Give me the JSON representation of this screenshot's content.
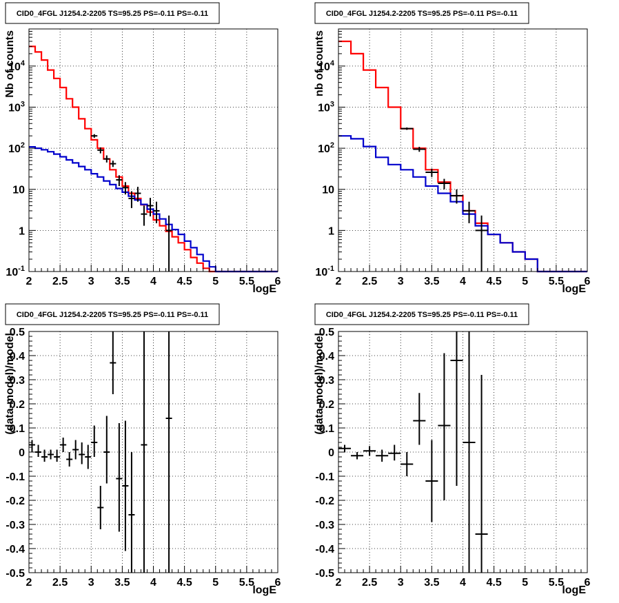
{
  "colors": {
    "data": "#000000",
    "total_model": "#ff0000",
    "source_model": "#0000cc",
    "grid": "#000000"
  },
  "chart_data": [
    {
      "type": "line",
      "title": "CID0_4FGL J1254.2-2205 TS=95.25 PS=-0.11 PS=-0.11",
      "xlabel": "logE",
      "ylabel": "Nb of counts",
      "xlim": [
        2,
        6
      ],
      "ylim": [
        0.1,
        80000
      ],
      "yscale": "log",
      "grid": true,
      "x_ticks": [
        "2",
        "2.5",
        "3",
        "3.5",
        "4",
        "4.5",
        "5",
        "5.5",
        "6"
      ],
      "y_ticks": [
        "10^-1",
        "1",
        "10",
        "10^2",
        "10^3",
        "10^4"
      ],
      "bin_edges": [
        2.0,
        2.1,
        2.2,
        2.3,
        2.4,
        2.5,
        2.6,
        2.7,
        2.8,
        2.9,
        3.0,
        3.1,
        3.2,
        3.3,
        3.4,
        3.5,
        3.6,
        3.7,
        3.8,
        3.9,
        4.0,
        4.1,
        4.2,
        4.3,
        4.4,
        4.5,
        4.6,
        4.7,
        4.8,
        4.9,
        5.0,
        5.1,
        5.2,
        5.3,
        5.4,
        5.5,
        5.6,
        5.7,
        5.8,
        5.9,
        6.0
      ],
      "series": [
        {
          "key": "total_model",
          "values": [
            30000,
            22000,
            14000,
            8000,
            5000,
            3000,
            1600,
            1000,
            520,
            300,
            160,
            100,
            55,
            30,
            20,
            12,
            8,
            6,
            4.2,
            2.8,
            1.8,
            1.3,
            0.95,
            0.7,
            0.5,
            0.34,
            0.22,
            0.16,
            0.12,
            0.1,
            0.1,
            0.1,
            0.1,
            0.1,
            0.1,
            0.1,
            0.1,
            0.1,
            0.1,
            0.1
          ]
        },
        {
          "key": "source_model",
          "values": [
            108,
            100,
            92,
            82,
            72,
            62,
            52,
            44,
            36,
            30,
            24,
            20,
            16,
            13,
            10.5,
            8.5,
            6.8,
            5.5,
            4.3,
            3.3,
            2.5,
            1.9,
            1.4,
            1.05,
            0.8,
            0.55,
            0.38,
            0.26,
            0.18,
            0.13,
            0.1,
            0.1,
            0.1,
            0.1,
            0.1,
            0.1,
            0.1,
            0.1,
            0.1,
            0.1
          ]
        }
      ],
      "points": [
        {
          "x": 3.05,
          "y": 200,
          "lo": 180,
          "hi": 220,
          "xe": 0.05
        },
        {
          "x": 3.15,
          "y": 90,
          "lo": 75,
          "hi": 105,
          "xe": 0.05
        },
        {
          "x": 3.25,
          "y": 55,
          "lo": 45,
          "hi": 67,
          "xe": 0.05
        },
        {
          "x": 3.35,
          "y": 42,
          "lo": 35,
          "hi": 50,
          "xe": 0.05
        },
        {
          "x": 3.45,
          "y": 17,
          "lo": 12,
          "hi": 22,
          "xe": 0.05
        },
        {
          "x": 3.55,
          "y": 11,
          "lo": 7.5,
          "hi": 15,
          "xe": 0.05
        },
        {
          "x": 3.65,
          "y": 6,
          "lo": 3.5,
          "hi": 9,
          "xe": 0.05
        },
        {
          "x": 3.75,
          "y": 8,
          "lo": 5,
          "hi": 11.5,
          "xe": 0.05
        },
        {
          "x": 3.85,
          "y": 2.5,
          "lo": 1.3,
          "hi": 4,
          "xe": 0.05
        },
        {
          "x": 3.95,
          "y": 4,
          "lo": 2.2,
          "hi": 6.2,
          "xe": 0.05
        },
        {
          "x": 4.05,
          "y": 3,
          "lo": 1.5,
          "hi": 5,
          "xe": 0.05
        },
        {
          "x": 4.25,
          "y": 1,
          "lo": 0.1,
          "hi": 2.3,
          "xe": 0.05
        }
      ]
    },
    {
      "type": "line",
      "title": "CID0_4FGL J1254.2-2205 TS=95.25 PS=-0.11 PS=-0.11",
      "xlabel": "logE",
      "ylabel": "nb of counts",
      "xlim": [
        2,
        6
      ],
      "ylim": [
        0.1,
        80000
      ],
      "yscale": "log",
      "grid": true,
      "x_ticks": [
        "2",
        "2.5",
        "3",
        "3.5",
        "4",
        "4.5",
        "5",
        "5.5",
        "6"
      ],
      "y_ticks": [
        "10^-1",
        "1",
        "10",
        "10^2",
        "10^3",
        "10^4"
      ],
      "bin_edges": [
        2.0,
        2.2,
        2.4,
        2.6,
        2.8,
        3.0,
        3.2,
        3.4,
        3.6,
        3.8,
        4.0,
        4.2,
        4.4,
        4.6,
        4.8,
        5.0,
        5.2,
        5.4,
        5.6,
        5.8,
        6.0
      ],
      "series": [
        {
          "key": "total_model",
          "values": [
            40000,
            20000,
            8000,
            3000,
            1000,
            300,
            100,
            30,
            15,
            7,
            3,
            1.5,
            0.8,
            0.5,
            0.3,
            0.2,
            0.1,
            0.1,
            0.1,
            0.1
          ]
        },
        {
          "key": "source_model",
          "values": [
            200,
            170,
            110,
            60,
            40,
            30,
            20,
            12,
            8,
            5,
            2.5,
            1.3,
            0.8,
            0.5,
            0.3,
            0.2,
            0.1,
            0.1,
            0.1,
            0.1
          ]
        }
      ],
      "points": [
        {
          "x": 3.1,
          "y": 300,
          "lo": 280,
          "hi": 320,
          "xe": 0.1
        },
        {
          "x": 3.3,
          "y": 95,
          "lo": 82,
          "hi": 108,
          "xe": 0.1
        },
        {
          "x": 3.5,
          "y": 26,
          "lo": 20,
          "hi": 32,
          "xe": 0.1
        },
        {
          "x": 3.7,
          "y": 14,
          "lo": 10,
          "hi": 18,
          "xe": 0.1
        },
        {
          "x": 3.9,
          "y": 7,
          "lo": 4.5,
          "hi": 10,
          "xe": 0.1
        },
        {
          "x": 4.1,
          "y": 3,
          "lo": 1.5,
          "hi": 5,
          "xe": 0.1
        },
        {
          "x": 4.3,
          "y": 1,
          "lo": 0.1,
          "hi": 2.3,
          "xe": 0.1
        }
      ]
    },
    {
      "type": "scatter",
      "title": "CID0_4FGL J1254.2-2205 TS=95.25 PS=-0.11 PS=-0.11",
      "xlabel": "logE",
      "ylabel": "(data-model)/model",
      "xlim": [
        2,
        6
      ],
      "ylim": [
        -0.5,
        0.5
      ],
      "grid": true,
      "x_ticks": [
        "2",
        "2.5",
        "3",
        "3.5",
        "4",
        "4.5",
        "5",
        "5.5",
        "6"
      ],
      "y_ticks": [
        "-0.5",
        "-0.4",
        "-0.3",
        "-0.2",
        "-0.1",
        "0",
        "0.1",
        "0.2",
        "0.3",
        "0.4",
        "0.5"
      ],
      "points": [
        {
          "x": 2.05,
          "y": 0.03,
          "lo": 0.0,
          "hi": 0.05,
          "xe": 0.05
        },
        {
          "x": 2.15,
          "y": 0.0,
          "lo": -0.02,
          "hi": 0.03,
          "xe": 0.05
        },
        {
          "x": 2.25,
          "y": -0.02,
          "lo": -0.04,
          "hi": 0.01,
          "xe": 0.05
        },
        {
          "x": 2.35,
          "y": -0.01,
          "lo": -0.03,
          "hi": 0.01,
          "xe": 0.05
        },
        {
          "x": 2.45,
          "y": -0.02,
          "lo": -0.04,
          "hi": 0.01,
          "xe": 0.05
        },
        {
          "x": 2.55,
          "y": 0.03,
          "lo": 0.0,
          "hi": 0.06,
          "xe": 0.05
        },
        {
          "x": 2.65,
          "y": -0.03,
          "lo": -0.06,
          "hi": 0.0,
          "xe": 0.05
        },
        {
          "x": 2.75,
          "y": 0.01,
          "lo": -0.03,
          "hi": 0.05,
          "xe": 0.05
        },
        {
          "x": 2.85,
          "y": -0.01,
          "lo": -0.05,
          "hi": 0.04,
          "xe": 0.05
        },
        {
          "x": 2.95,
          "y": -0.02,
          "lo": -0.07,
          "hi": 0.03,
          "xe": 0.05
        },
        {
          "x": 3.05,
          "y": 0.04,
          "lo": -0.02,
          "hi": 0.11,
          "xe": 0.05
        },
        {
          "x": 3.15,
          "y": -0.23,
          "lo": -0.32,
          "hi": -0.14,
          "xe": 0.05
        },
        {
          "x": 3.25,
          "y": 0.0,
          "lo": -0.13,
          "hi": 0.15,
          "xe": 0.05
        },
        {
          "x": 3.35,
          "y": 0.37,
          "lo": 0.24,
          "hi": 0.5,
          "xe": 0.05
        },
        {
          "x": 3.45,
          "y": -0.11,
          "lo": -0.33,
          "hi": 0.12,
          "xe": 0.05
        },
        {
          "x": 3.55,
          "y": -0.14,
          "lo": -0.41,
          "hi": 0.13,
          "xe": 0.05
        },
        {
          "x": 3.65,
          "y": -0.26,
          "lo": -0.5,
          "hi": 0.0,
          "xe": 0.05
        },
        {
          "x": 3.85,
          "y": 0.03,
          "lo": -0.5,
          "hi": 0.5,
          "xe": 0.05
        },
        {
          "x": 4.25,
          "y": 0.14,
          "lo": -0.5,
          "hi": 0.5,
          "xe": 0.05
        }
      ]
    },
    {
      "type": "scatter",
      "title": "CID0_4FGL J1254.2-2205 TS=95.25 PS=-0.11 PS=-0.11",
      "xlabel": "logE",
      "ylabel": "(data-model)/model",
      "xlim": [
        2,
        6
      ],
      "ylim": [
        -0.5,
        0.5
      ],
      "grid": true,
      "x_ticks": [
        "2",
        "2.5",
        "3",
        "3.5",
        "4",
        "4.5",
        "5",
        "5.5",
        "6"
      ],
      "y_ticks": [
        "-0.5",
        "-0.4",
        "-0.3",
        "-0.2",
        "-0.1",
        "0",
        "0.1",
        "0.2",
        "0.3",
        "0.4",
        "0.5"
      ],
      "points": [
        {
          "x": 2.1,
          "y": 0.015,
          "lo": 0.0,
          "hi": 0.03,
          "xe": 0.1
        },
        {
          "x": 2.3,
          "y": -0.015,
          "lo": -0.03,
          "hi": 0.0,
          "xe": 0.1
        },
        {
          "x": 2.5,
          "y": 0.005,
          "lo": -0.015,
          "hi": 0.025,
          "xe": 0.1
        },
        {
          "x": 2.7,
          "y": -0.015,
          "lo": -0.04,
          "hi": 0.01,
          "xe": 0.1
        },
        {
          "x": 2.9,
          "y": -0.005,
          "lo": -0.035,
          "hi": 0.03,
          "xe": 0.1
        },
        {
          "x": 3.1,
          "y": -0.05,
          "lo": -0.1,
          "hi": 0.0,
          "xe": 0.1
        },
        {
          "x": 3.3,
          "y": 0.13,
          "lo": 0.03,
          "hi": 0.245,
          "xe": 0.1
        },
        {
          "x": 3.5,
          "y": -0.12,
          "lo": -0.29,
          "hi": 0.05,
          "xe": 0.1
        },
        {
          "x": 3.7,
          "y": 0.11,
          "lo": -0.2,
          "hi": 0.41,
          "xe": 0.1
        },
        {
          "x": 3.9,
          "y": 0.38,
          "lo": -0.14,
          "hi": 0.5,
          "xe": 0.1
        },
        {
          "x": 4.1,
          "y": 0.04,
          "lo": -0.5,
          "hi": 0.5,
          "xe": 0.1
        },
        {
          "x": 4.3,
          "y": -0.34,
          "lo": -0.5,
          "hi": 0.32,
          "xe": 0.1
        }
      ]
    }
  ]
}
